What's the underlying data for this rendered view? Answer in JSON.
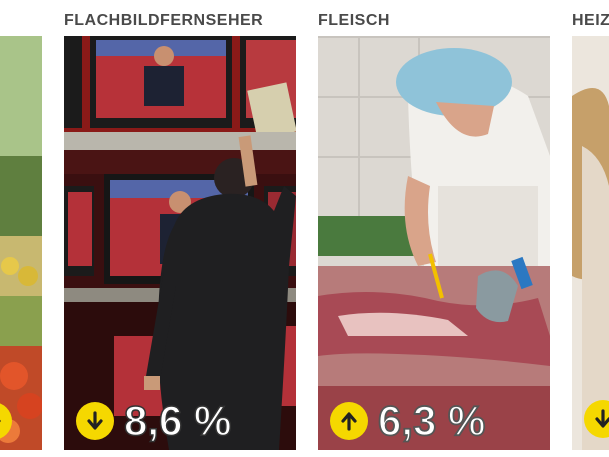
{
  "panels": [
    {
      "title": "",
      "value": "",
      "direction": "down",
      "colors": {
        "bg": "#6b8b4a"
      }
    },
    {
      "title": "FLACHBILDFERNSEHER",
      "value": "8,6 %",
      "direction": "down",
      "colors": {
        "bg": "#5a1a1a"
      }
    },
    {
      "title": "FLEISCH",
      "value": "6,3 %",
      "direction": "up",
      "colors": {
        "bg": "#d9d3cc"
      }
    },
    {
      "title": "HEIZ",
      "value": "",
      "direction": "down",
      "colors": {
        "bg": "#e8e2da"
      }
    }
  ],
  "icons": {
    "down": "arrow-down-icon",
    "up": "arrow-up-icon"
  },
  "badge_color": "#f5d800"
}
